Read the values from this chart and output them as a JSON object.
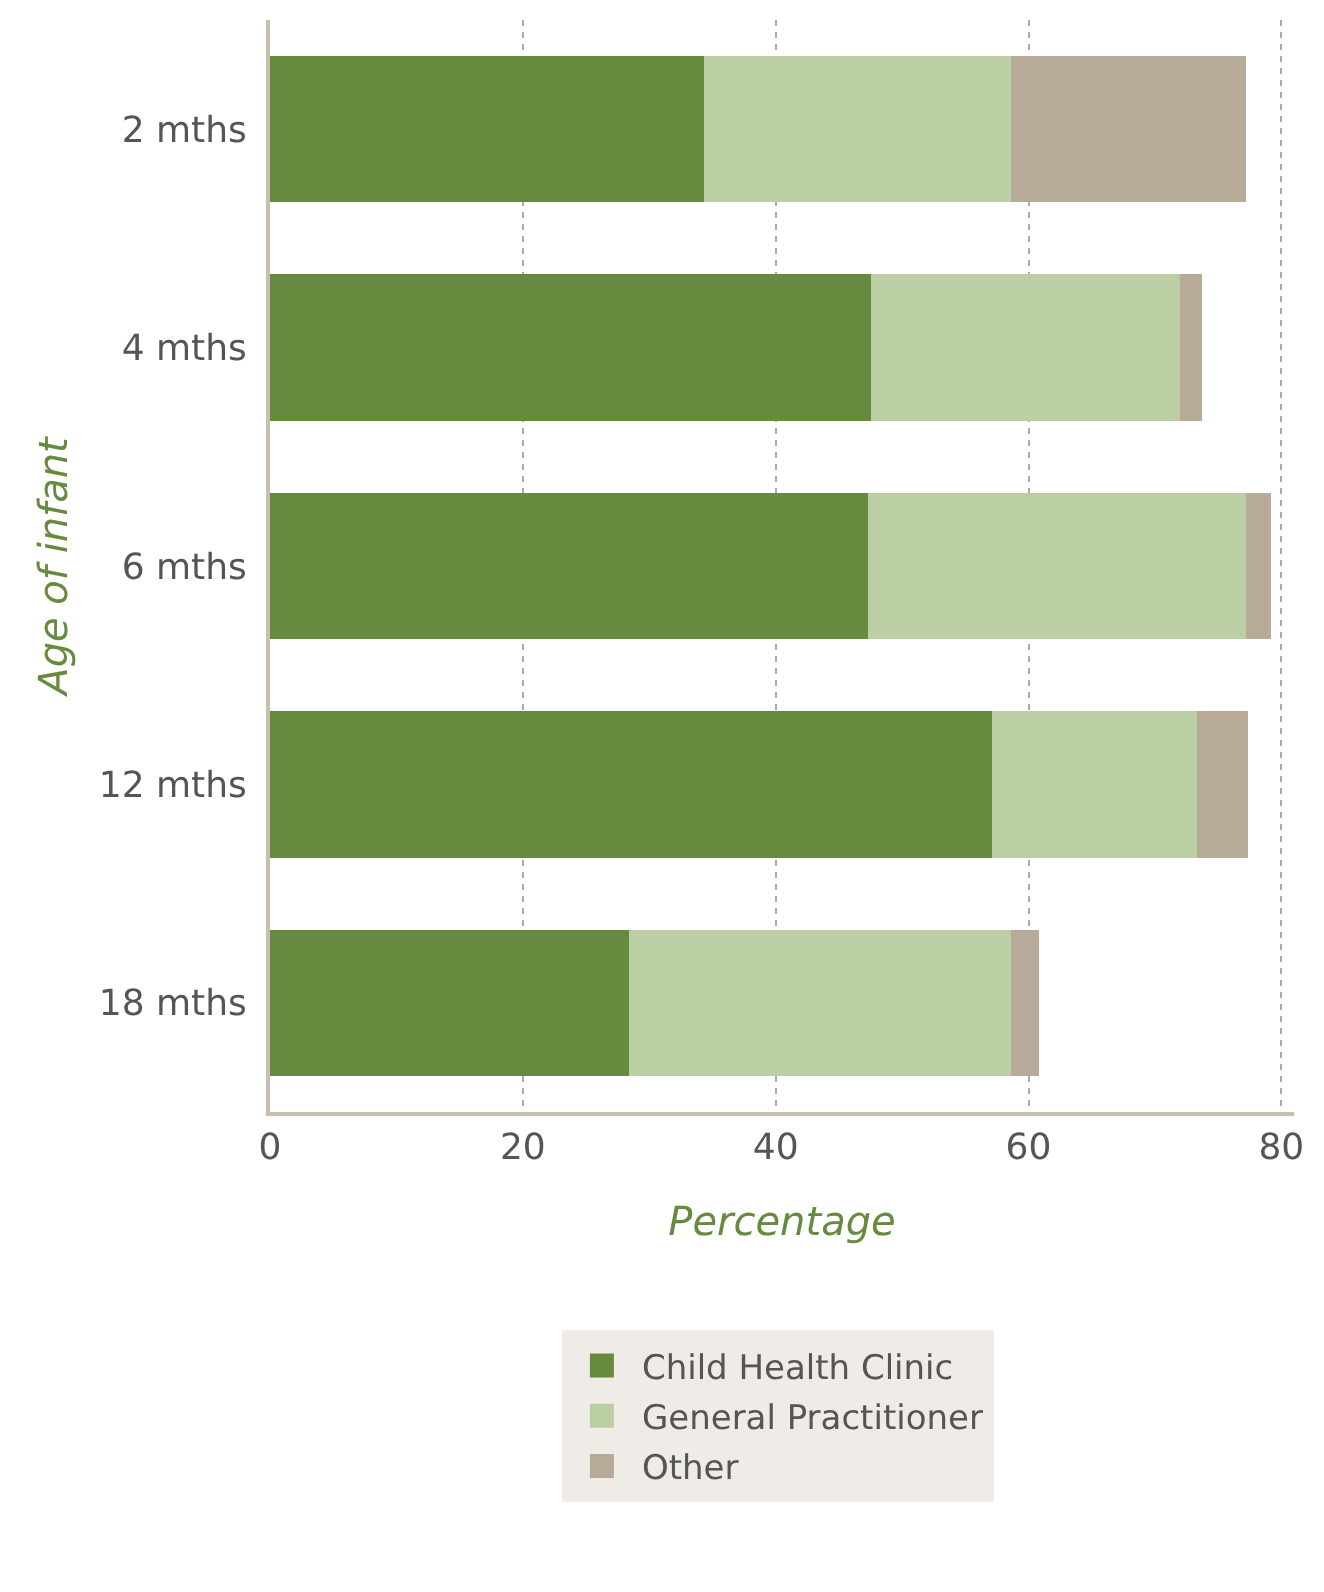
{
  "chart_data": {
    "type": "bar",
    "orientation": "horizontal",
    "stacked": true,
    "xlabel": "Percentage",
    "ylabel": "Age of infant",
    "categories": [
      "2 mths",
      "4 mths",
      "6 mths",
      "12 mths",
      "18 mths"
    ],
    "series": [
      {
        "name": "Child Health Clinic",
        "color": "#668a3e",
        "values": [
          34.3,
          47.5,
          47.3,
          57.1,
          28.4
        ]
      },
      {
        "name": "General Practitioner",
        "color": "#bccfa4",
        "values": [
          24.3,
          24.5,
          29.9,
          16.2,
          30.2
        ]
      },
      {
        "name": "Other",
        "color": "#b8aa98",
        "values": [
          18.6,
          1.7,
          2.0,
          4.1,
          2.2
        ]
      }
    ],
    "xlim": [
      0,
      81
    ],
    "xticks": [
      0,
      20,
      40,
      60,
      80
    ],
    "grid": "x",
    "legend": "bottom"
  }
}
